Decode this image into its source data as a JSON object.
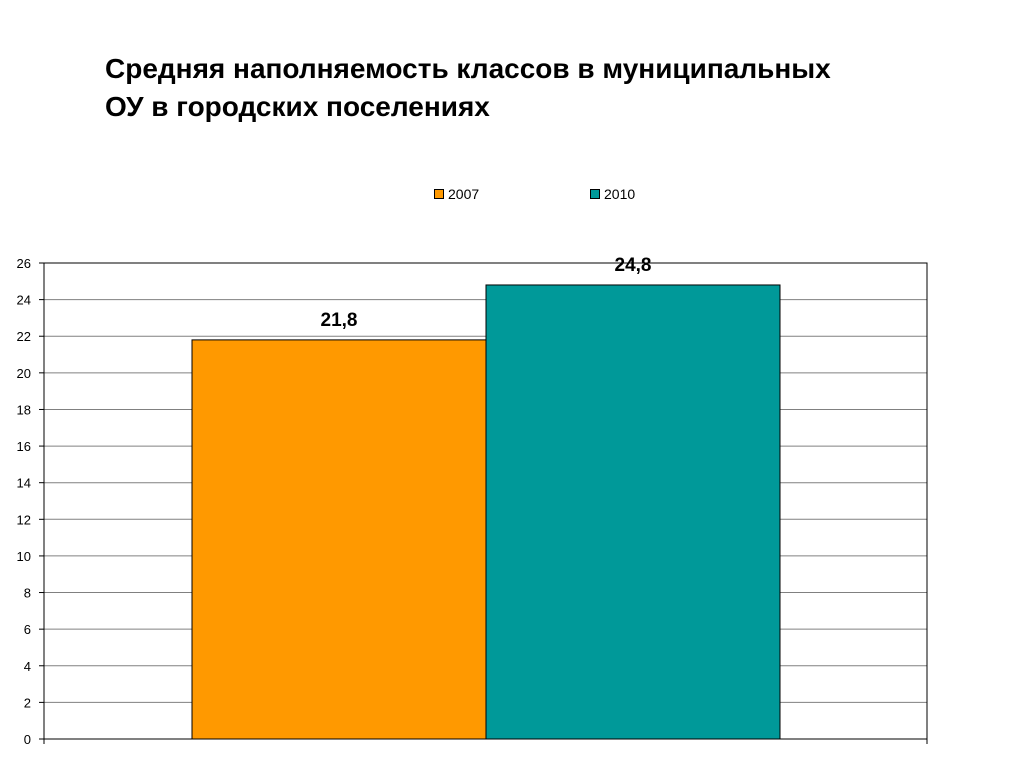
{
  "title": {
    "line1": "Средняя наполняемость классов в муниципальных",
    "line2": "ОУ в городских поселениях"
  },
  "chart_data": {
    "type": "bar",
    "categories": [
      ""
    ],
    "series": [
      {
        "name": "2007",
        "values": [
          21.8
        ],
        "value_label": "21,8",
        "color": "#FF9900"
      },
      {
        "name": "2010",
        "values": [
          24.8
        ],
        "value_label": "24,8",
        "color": "#009999"
      }
    ],
    "ylim": [
      0,
      26
    ],
    "yticks": [
      "0",
      "2",
      "4",
      "6",
      "8",
      "10",
      "12",
      "14",
      "16",
      "18",
      "20",
      "22",
      "24",
      "26"
    ],
    "grid": true,
    "legend_position": "top"
  }
}
